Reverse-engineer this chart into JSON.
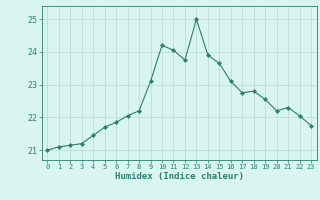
{
  "x": [
    0,
    1,
    2,
    3,
    4,
    5,
    6,
    7,
    8,
    9,
    10,
    11,
    12,
    13,
    14,
    15,
    16,
    17,
    18,
    19,
    20,
    21,
    22,
    23
  ],
  "y": [
    21.0,
    21.1,
    21.15,
    21.2,
    21.45,
    21.7,
    21.85,
    22.05,
    22.2,
    23.1,
    24.2,
    24.05,
    23.75,
    25.0,
    23.9,
    23.65,
    23.1,
    22.75,
    22.8,
    22.55,
    22.2,
    22.3,
    22.05,
    21.75
  ],
  "line_color": "#2e7d6e",
  "marker": "D",
  "marker_size": 2.0,
  "bg_color": "#d8f5f0",
  "grid_color": "#c0ddd8",
  "xlabel": "Humidex (Indice chaleur)",
  "ylim": [
    20.7,
    25.4
  ],
  "xlim": [
    -0.5,
    23.5
  ],
  "yticks": [
    21,
    22,
    23,
    24,
    25
  ],
  "xticks": [
    0,
    1,
    2,
    3,
    4,
    5,
    6,
    7,
    8,
    9,
    10,
    11,
    12,
    13,
    14,
    15,
    16,
    17,
    18,
    19,
    20,
    21,
    22,
    23
  ],
  "tick_color": "#2e7d6e",
  "label_color": "#2e7d6e",
  "xtick_fontsize": 5.0,
  "ytick_fontsize": 6.0,
  "xlabel_fontsize": 6.5,
  "linewidth": 0.8
}
